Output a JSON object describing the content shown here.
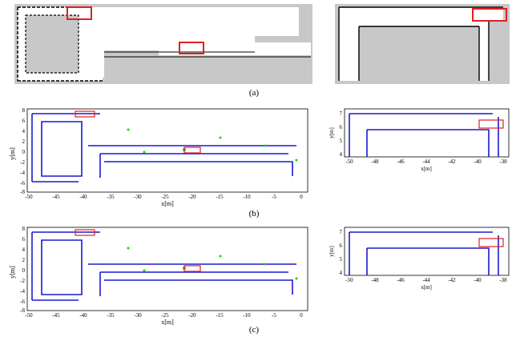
{
  "captions": {
    "a": "(a)",
    "b": "(b)",
    "c": "(c)"
  },
  "colors": {
    "map_bg": "#c8c8c8",
    "wall": "#1a1ad0",
    "green": "#22cc22",
    "highlight": "#e02020"
  },
  "axes": {
    "xlabel": "x[m]",
    "ylabel": "y[m]",
    "wide": {
      "x_ticks": [
        "-50",
        "-45",
        "-40",
        "-35",
        "-30",
        "-25",
        "-20",
        "-15",
        "-10",
        "-5",
        "0"
      ],
      "y_ticks": [
        "8",
        "6",
        "4",
        "2",
        "0",
        "-2",
        "-4",
        "-6",
        "-8"
      ]
    },
    "zoom": {
      "x_ticks": [
        "-50",
        "-48",
        "-46",
        "-44",
        "-42",
        "-40",
        "-38"
      ],
      "y_ticks": [
        "7",
        "6",
        "5",
        "4"
      ]
    }
  }
}
